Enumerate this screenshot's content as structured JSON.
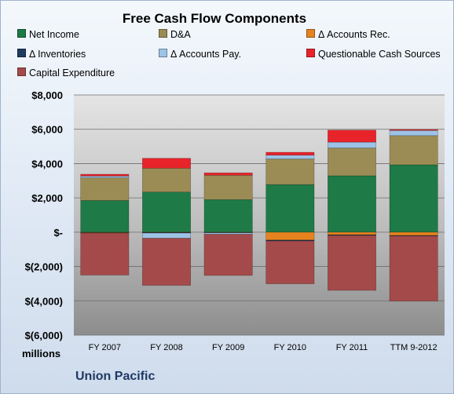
{
  "chart_data": {
    "type": "bar",
    "stacked": true,
    "title": "Free Cash Flow Components",
    "ylabel": "millions",
    "brand": "Union Pacific",
    "ylim": [
      -6000,
      8000
    ],
    "yticks": [
      {
        "value": 8000,
        "label": "$8,000"
      },
      {
        "value": 6000,
        "label": "$6,000"
      },
      {
        "value": 4000,
        "label": "$4,000"
      },
      {
        "value": 2000,
        "label": "$2,000"
      },
      {
        "value": 0,
        "label": "$-"
      },
      {
        "value": -2000,
        "label": "$(2,000)"
      },
      {
        "value": -4000,
        "label": "$(4,000)"
      },
      {
        "value": -6000,
        "label": "$(6,000)"
      }
    ],
    "grid": true,
    "legend_position": "top",
    "categories": [
      "FY 2007",
      "FY 2008",
      "FY 2009",
      "FY 2010",
      "FY 2011",
      "TTM 9-2012"
    ],
    "series": [
      {
        "name": "Net Income",
        "color": "#1e7a46",
        "values": [
          1850,
          2340,
          1900,
          2780,
          3290,
          3930
        ]
      },
      {
        "name": "D&A",
        "color": "#9b8c55",
        "values": [
          1320,
          1390,
          1420,
          1490,
          1620,
          1700
        ]
      },
      {
        "name": "Δ Accounts Rec.",
        "color": "#e6831f",
        "values": [
          -30,
          -20,
          -20,
          -460,
          -150,
          -190
        ]
      },
      {
        "name": "Δ Inventories",
        "color": "#1f3a5f",
        "values": [
          -20,
          -30,
          -20,
          -50,
          -40,
          -30
        ]
      },
      {
        "name": "Δ Accounts Pay.",
        "color": "#9dc3e6",
        "values": [
          100,
          -300,
          -80,
          220,
          340,
          300
        ]
      },
      {
        "name": "Questionable Cash Sources",
        "color": "#e8232a",
        "values": [
          110,
          580,
          140,
          170,
          700,
          60
        ]
      },
      {
        "name": "Capital Expenditure",
        "color": "#a44a4a",
        "values": [
          -2450,
          -2750,
          -2400,
          -2500,
          -3200,
          -3800
        ]
      }
    ]
  }
}
